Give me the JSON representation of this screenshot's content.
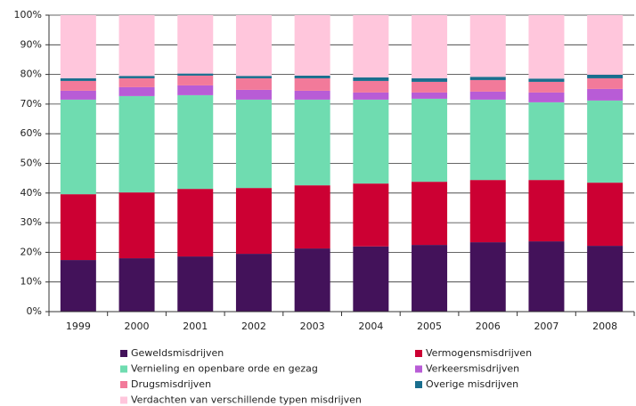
{
  "chart_data": {
    "type": "stacked_bar",
    "categories": [
      "1999",
      "2000",
      "2001",
      "2002",
      "2003",
      "2004",
      "2005",
      "2006",
      "2007",
      "2008"
    ],
    "series": [
      {
        "name": "Geweldsmisdrijven",
        "color": "#43125a",
        "values": [
          17.4,
          18,
          18.6,
          19.5,
          21.3,
          22,
          22.5,
          23.4,
          23.7,
          22.2
        ]
      },
      {
        "name": "Vermogensmisdrijven",
        "color": "#cc0033",
        "values": [
          22.2,
          22.2,
          22.8,
          22.2,
          21.3,
          21.2,
          21.3,
          21,
          20.7,
          21.3
        ]
      },
      {
        "name": "Vernieling en openbare orde en gezag",
        "color": "#6fdcb0",
        "values": [
          31.9,
          32.5,
          31.6,
          29.8,
          28.9,
          28.3,
          28,
          27.1,
          26.2,
          27.7
        ]
      },
      {
        "name": "Verkeersmisdrijven",
        "color": "#b85cd6",
        "values": [
          3,
          3,
          3.3,
          3.3,
          3,
          2.4,
          2.1,
          2.7,
          3.3,
          3.9
        ]
      },
      {
        "name": "Drugsmisdrijven",
        "color": "#f27a9a",
        "values": [
          3.3,
          3,
          3.3,
          3.9,
          4.2,
          3.9,
          3.6,
          3.9,
          3.6,
          3.6
        ]
      },
      {
        "name": "Overige misdrijven",
        "color": "#1a6e8e",
        "values": [
          0.9,
          0.8,
          0.7,
          0.8,
          0.9,
          1.2,
          1.2,
          1.1,
          1.1,
          1.2
        ]
      },
      {
        "name": "Verdachten van verschillende typen misdrijven",
        "color": "#ffc6dc",
        "values": [
          21.3,
          20.5,
          19.7,
          20.5,
          20.4,
          21,
          21.3,
          20.8,
          21.4,
          20.1
        ]
      }
    ],
    "ylim": [
      0,
      100
    ],
    "yticks": [
      {
        "value": 0,
        "label": "0%"
      },
      {
        "value": 10,
        "label": "10%"
      },
      {
        "value": 20,
        "label": "20%"
      },
      {
        "value": 30,
        "label": "30%"
      },
      {
        "value": 40,
        "label": "40%"
      },
      {
        "value": 50,
        "label": "50%"
      },
      {
        "value": 60,
        "label": "60%"
      },
      {
        "value": 70,
        "label": "70%"
      },
      {
        "value": 80,
        "label": "80%"
      },
      {
        "value": 90,
        "label": "90%"
      },
      {
        "value": 100,
        "label": "100%"
      }
    ],
    "grid": true
  }
}
